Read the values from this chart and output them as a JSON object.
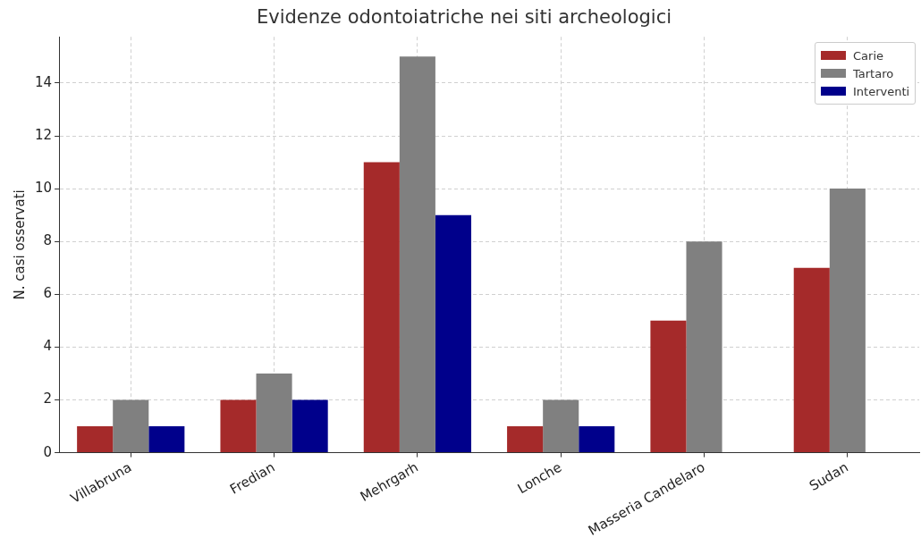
{
  "chart_data": {
    "type": "bar",
    "title": "Evidenze odontoiatriche nei siti archeologici",
    "ylabel": "N. casi osservati",
    "categories": [
      "Villabruna",
      "Fredian",
      "Mehrgarh",
      "Lonche",
      "Masseria Candelaro",
      "Sudan"
    ],
    "series": [
      {
        "name": "Carie",
        "color": "#a52a2a",
        "values": [
          1,
          2,
          11,
          1,
          5,
          7
        ]
      },
      {
        "name": "Tartaro",
        "color": "#808080",
        "values": [
          2,
          3,
          15,
          2,
          8,
          10
        ]
      },
      {
        "name": "Interventi",
        "color": "#00008b",
        "values": [
          1,
          2,
          9,
          1,
          0,
          0
        ]
      }
    ],
    "ylim": [
      0,
      15.75
    ],
    "yticks": [
      0,
      2,
      4,
      6,
      8,
      10,
      12,
      14
    ],
    "grid": true,
    "legend": "top right"
  }
}
